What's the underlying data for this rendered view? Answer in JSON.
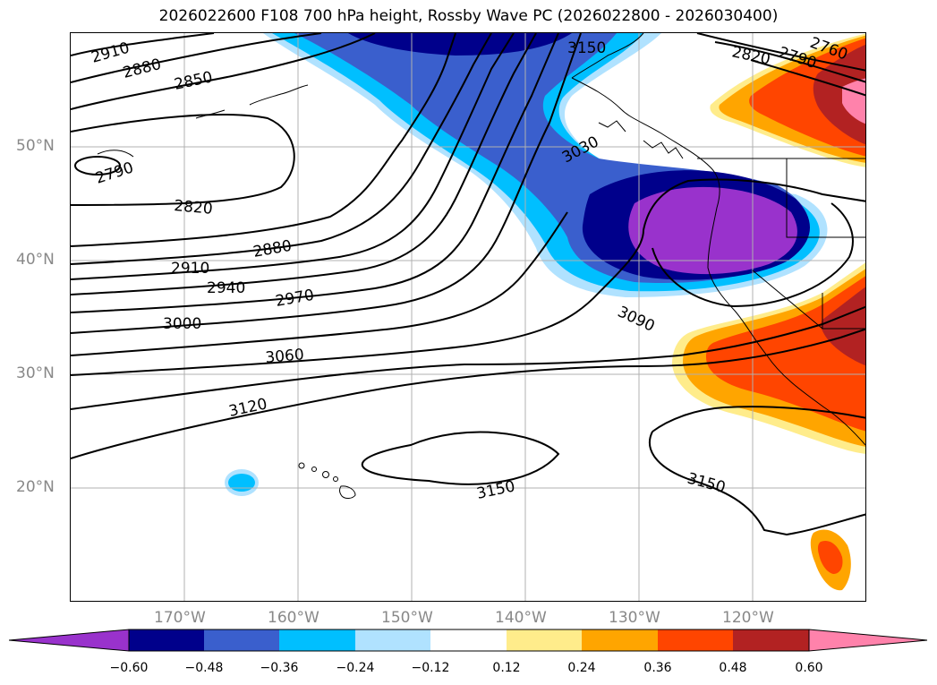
{
  "title": "2026022600 F108 700 hPa height, Rossby Wave PC (2026022800 - 2026030400)",
  "lat_labels": [
    "50°N",
    "40°N",
    "30°N",
    "20°N"
  ],
  "lon_labels": [
    "170°W",
    "160°W",
    "150°W",
    "140°W",
    "130°W",
    "120°W"
  ],
  "contour_labels": [
    "2910",
    "2880",
    "2850",
    "2790",
    "2820",
    "2880",
    "2910",
    "2940",
    "2970",
    "3000",
    "3060",
    "3120",
    "3150",
    "3150",
    "3090",
    "3030",
    "3150",
    "2820",
    "2790",
    "2760"
  ],
  "colorbar": {
    "ticks": [
      "−0.60",
      "−0.48",
      "−0.36",
      "−0.24",
      "−0.12",
      "0.12",
      "0.24",
      "0.36",
      "0.48",
      "0.60"
    ],
    "colors": [
      "#9932CC",
      "#00008B",
      "#3A5FCD",
      "#00BFFF",
      "#B0E2FF",
      "#FFFFFF",
      "#FFEC8B",
      "#FFA500",
      "#FF4500",
      "#B22222",
      "#FF82AB"
    ]
  }
}
